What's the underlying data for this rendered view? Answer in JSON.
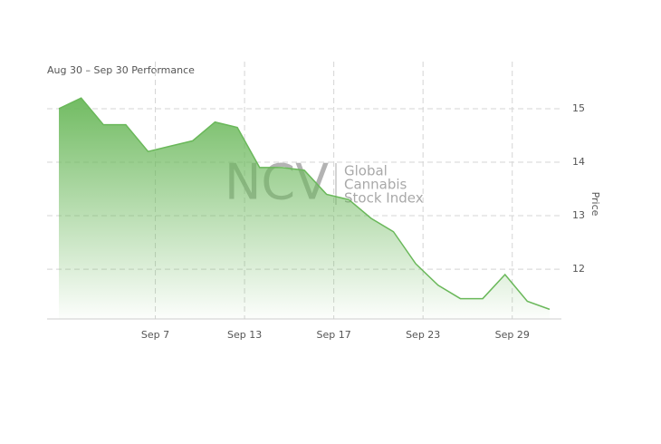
{
  "chart_data": {
    "type": "area",
    "title": "Aug 30 – Sep 30 Performance",
    "y_label": "Price",
    "watermark": {
      "logo": "NCV",
      "lines": [
        "Global",
        "Cannabis",
        "Stock Index"
      ]
    },
    "categories": [
      null,
      null,
      null,
      null,
      "Sep 7",
      null,
      null,
      null,
      "Sep 13",
      null,
      null,
      null,
      "Sep 17",
      null,
      null,
      null,
      "Sep 23",
      null,
      null,
      null,
      "Sep 29",
      null,
      null
    ],
    "series": [
      {
        "name": "Price",
        "color": "#6ab85a",
        "values": [
          15.0,
          15.2,
          14.7,
          14.7,
          14.2,
          14.3,
          14.4,
          14.75,
          14.65,
          13.9,
          13.9,
          13.85,
          13.4,
          13.3,
          12.95,
          12.7,
          12.1,
          11.7,
          11.45,
          11.45,
          11.9,
          11.4,
          11.25
        ]
      }
    ],
    "ylim": [
      11.07,
      15.88
    ],
    "yticks": [
      12,
      13,
      14,
      15
    ],
    "grid": true
  }
}
